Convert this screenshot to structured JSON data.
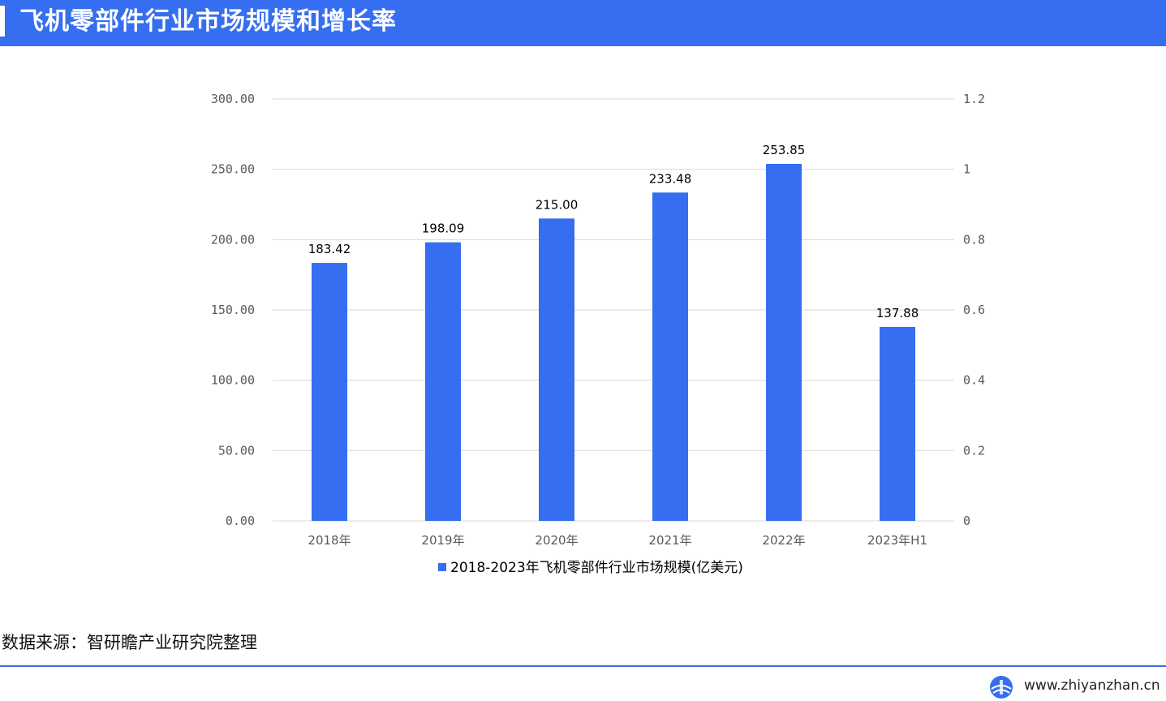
{
  "header": {
    "title": "飞机零部件行业市场规模和增长率"
  },
  "chart_data": {
    "type": "bar",
    "categories": [
      "2018年",
      "2019年",
      "2020年",
      "2021年",
      "2022年",
      "2023年H1"
    ],
    "series": [
      {
        "name": "2018-2023年飞机零部件行业市场规模(亿美元)",
        "values": [
          183.42,
          198.09,
          215.0,
          233.48,
          253.85,
          137.88
        ],
        "color": "#356ef0"
      }
    ],
    "data_labels": [
      "183.42",
      "198.09",
      "215.00",
      "233.48",
      "253.85",
      "137.88"
    ],
    "y_left": {
      "min": 0,
      "max": 300,
      "ticks": [
        "0.00",
        "50.00",
        "100.00",
        "150.00",
        "200.00",
        "250.00",
        "300.00"
      ]
    },
    "y_right": {
      "min": 0,
      "max": 1.2,
      "ticks": [
        "0",
        "0.2",
        "0.4",
        "0.6",
        "0.8",
        "1",
        "1.2"
      ]
    },
    "grid": true,
    "legend_position": "bottom"
  },
  "source_text": "数据来源：智研瞻产业研究院整理",
  "footer": {
    "url": "www.zhiyanzhan.cn",
    "logo_icon": "globe-logo-icon"
  },
  "colors": {
    "accent": "#356ef0",
    "grid": "#d9d9d9",
    "axis_text": "#595959"
  }
}
